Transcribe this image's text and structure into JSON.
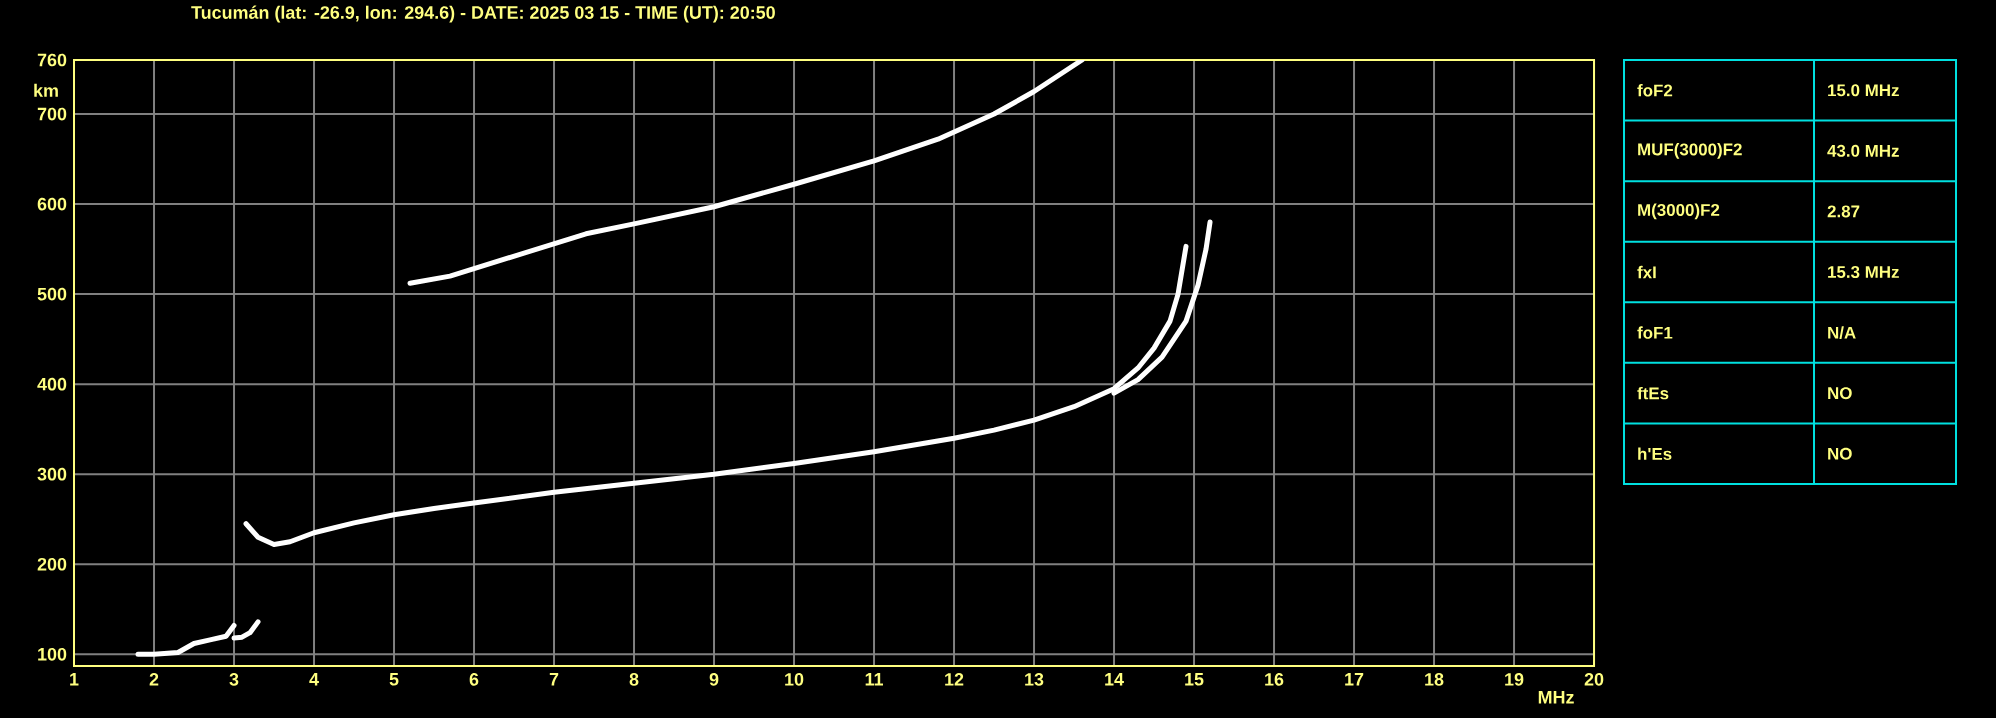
{
  "chart_data": [
    {
      "type": "line",
      "title": "Tucumán (lat: -26.9, lon: 294.6) - DATE: 2025 03 15 - TIME (UT): 20:50",
      "xlabel": "MHz",
      "ylabel": "km",
      "xlim": [
        1,
        20
      ],
      "ylim": [
        87,
        760
      ],
      "xticks": [
        1,
        2,
        3,
        4,
        5,
        6,
        7,
        8,
        9,
        10,
        11,
        12,
        13,
        14,
        15,
        16,
        17,
        18,
        19,
        20
      ],
      "yticks": [
        100,
        200,
        300,
        400,
        500,
        600,
        700,
        760
      ],
      "grid": true,
      "series": [
        {
          "color": "#ffffff",
          "x": [
            3.15,
            3.3,
            3.5,
            3.7,
            4,
            4.5,
            5,
            5.5,
            6,
            7,
            8,
            9,
            10,
            11,
            12,
            12.5,
            13,
            13.5,
            14,
            14.3,
            14.5,
            14.7,
            14.8,
            14.9
          ],
          "values": [
            245,
            230,
            222,
            225,
            235,
            246,
            255,
            262,
            268,
            280,
            290,
            300,
            312,
            325,
            340,
            349,
            360,
            375,
            395,
            418,
            440,
            470,
            500,
            553
          ]
        },
        {
          "color": "#ffffff",
          "x": [
            14.0,
            14.3,
            14.6,
            14.9,
            15.05,
            15.15,
            15.2
          ],
          "values": [
            390,
            405,
            430,
            470,
            510,
            550,
            580
          ]
        },
        {
          "color": "#ffffff",
          "x": [
            5.2,
            5.7,
            7.4,
            8,
            9,
            10,
            11,
            11.8,
            12.5,
            13,
            13.6
          ],
          "values": [
            512,
            520,
            567,
            578,
            597,
            622,
            648,
            672,
            700,
            725,
            760
          ]
        },
        {
          "color": "#ffffff",
          "x": [
            1.8,
            2.0,
            2.3,
            2.5,
            2.7,
            2.9,
            3.0
          ],
          "values": [
            100,
            100,
            102,
            112,
            116,
            120,
            132
          ]
        },
        {
          "color": "#ffffff",
          "x": [
            3.0,
            3.1,
            3.2,
            3.3
          ],
          "values": [
            118,
            119,
            124,
            136
          ]
        }
      ]
    },
    {
      "type": "other",
      "categories": [
        "foF2",
        "MUF(3000)F2",
        "M(3000)F2",
        "fxI",
        "foF1",
        "ftEs",
        "h'Es"
      ],
      "annotations": [
        "15.0 MHz",
        "43.0 MHz",
        "2.87",
        "15.3 MHz",
        "N/A",
        "NO",
        "NO"
      ]
    }
  ]
}
